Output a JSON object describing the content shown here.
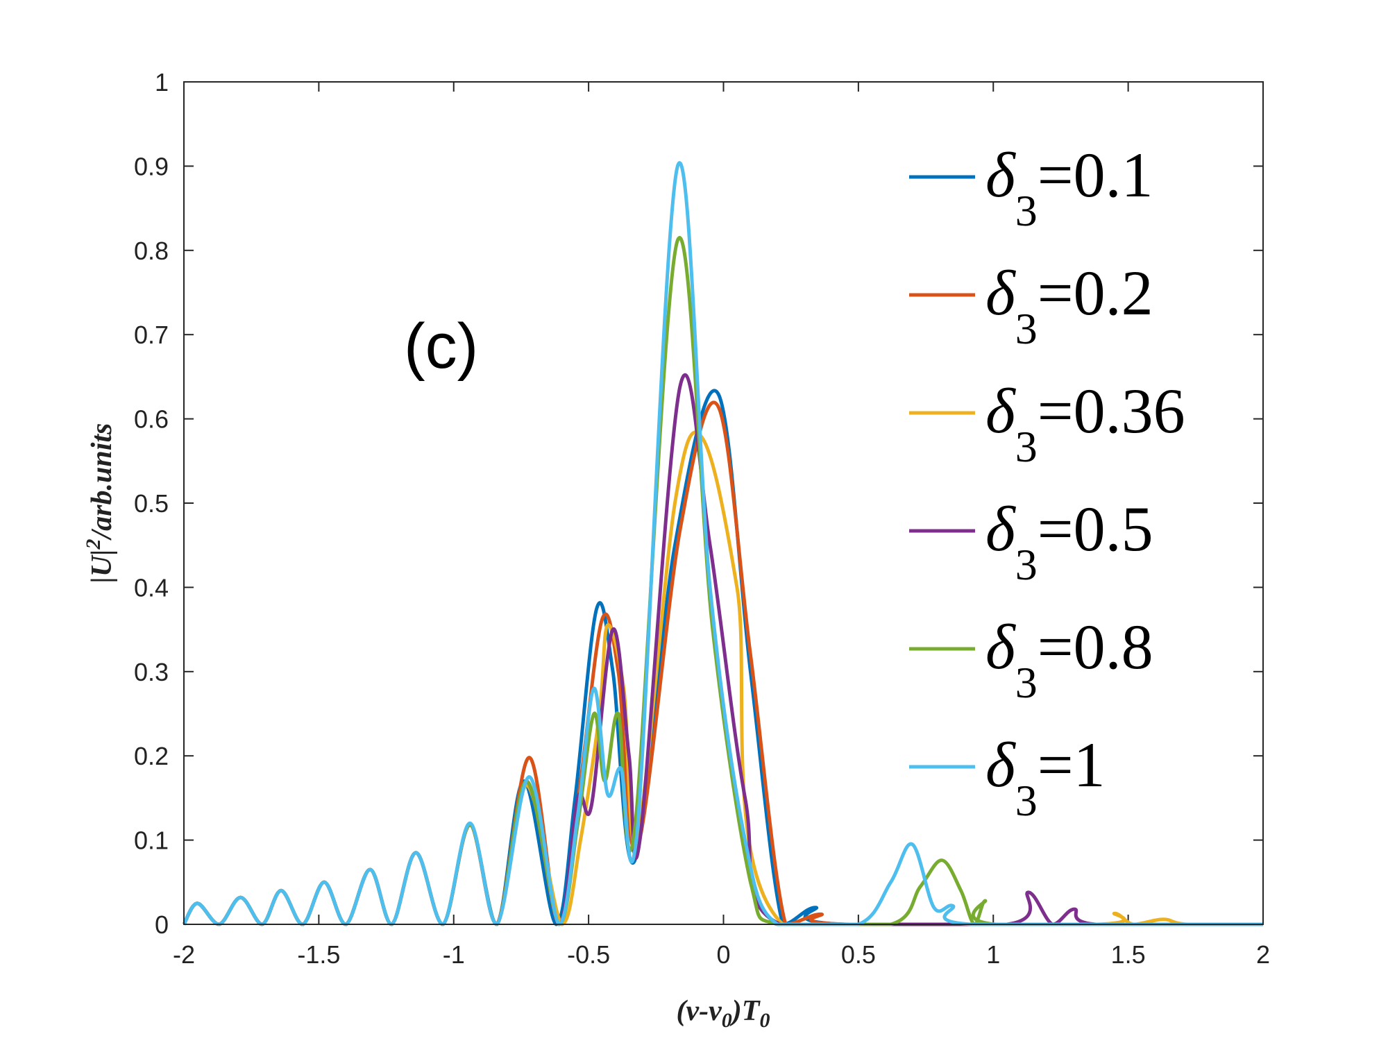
{
  "chart_data": {
    "type": "line",
    "panel_label": "(c)",
    "xlabel": "(v-v0)T0",
    "xlabel_parts": {
      "a": "(v-v",
      "b": "0",
      "c": ")T",
      "d": "0"
    },
    "ylabel": "|U|2/arb.units",
    "ylabel_parts": {
      "a": "|U|",
      "b": "2",
      "c": "/arb.units"
    },
    "xlim": [
      -2,
      2
    ],
    "ylim": [
      0,
      1
    ],
    "x_ticks": [
      "-2",
      "-1.5",
      "-1",
      "-0.5",
      "0",
      "0.5",
      "1",
      "1.5",
      "2"
    ],
    "y_ticks": [
      "0",
      "0.1",
      "0.2",
      "0.3",
      "0.4",
      "0.5",
      "0.6",
      "0.7",
      "0.8",
      "0.9",
      "1"
    ],
    "legend_location": "top-right",
    "series": [
      {
        "name": "δ3=0.1",
        "symbol": "δ",
        "sub": "3",
        "value_text": "=0.1",
        "color": "#0072BD",
        "points": [
          [
            -2,
            0.0
          ],
          [
            -1.95,
            0.025
          ],
          [
            -1.87,
            0.0
          ],
          [
            -1.79,
            0.032
          ],
          [
            -1.71,
            0.0
          ],
          [
            -1.64,
            0.04
          ],
          [
            -1.56,
            0.0
          ],
          [
            -1.48,
            0.05
          ],
          [
            -1.4,
            0.0
          ],
          [
            -1.31,
            0.065
          ],
          [
            -1.23,
            0.0
          ],
          [
            -1.14,
            0.085
          ],
          [
            -1.04,
            0.0
          ],
          [
            -0.94,
            0.118
          ],
          [
            -0.84,
            0.0
          ],
          [
            -0.74,
            0.17
          ],
          [
            -0.62,
            0.0
          ],
          [
            -0.55,
            0.15
          ],
          [
            -0.47,
            0.375
          ],
          [
            -0.41,
            0.3
          ],
          [
            -0.33,
            0.075
          ],
          [
            -0.18,
            0.45
          ],
          [
            -0.02,
            0.63
          ],
          [
            0.1,
            0.3
          ],
          [
            0.22,
            0.0
          ],
          [
            0.34,
            0.02
          ],
          [
            0.45,
            0.0
          ],
          [
            2,
            0.0
          ]
        ]
      },
      {
        "name": "δ3=0.2",
        "symbol": "δ",
        "sub": "3",
        "value_text": "=0.2",
        "color": "#D95319",
        "points": [
          [
            -2,
            0.0
          ],
          [
            -1.95,
            0.025
          ],
          [
            -1.87,
            0.0
          ],
          [
            -1.79,
            0.032
          ],
          [
            -1.71,
            0.0
          ],
          [
            -1.64,
            0.04
          ],
          [
            -1.56,
            0.0
          ],
          [
            -1.48,
            0.05
          ],
          [
            -1.4,
            0.0
          ],
          [
            -1.31,
            0.065
          ],
          [
            -1.23,
            0.0
          ],
          [
            -1.14,
            0.085
          ],
          [
            -1.04,
            0.0
          ],
          [
            -0.94,
            0.118
          ],
          [
            -0.84,
            0.0
          ],
          [
            -0.72,
            0.198
          ],
          [
            -0.61,
            0.0
          ],
          [
            -0.53,
            0.17
          ],
          [
            -0.45,
            0.362
          ],
          [
            -0.39,
            0.3
          ],
          [
            -0.32,
            0.09
          ],
          [
            -0.16,
            0.47
          ],
          [
            -0.02,
            0.615
          ],
          [
            0.1,
            0.32
          ],
          [
            0.23,
            0.0
          ],
          [
            0.36,
            0.012
          ],
          [
            0.47,
            0.0
          ],
          [
            2,
            0.0
          ]
        ]
      },
      {
        "name": "δ3=0.36",
        "symbol": "δ",
        "sub": "3",
        "value_text": "=0.36",
        "color": "#EDB120",
        "points": [
          [
            -2,
            0.0
          ],
          [
            -1.95,
            0.025
          ],
          [
            -1.87,
            0.0
          ],
          [
            -1.79,
            0.032
          ],
          [
            -1.71,
            0.0
          ],
          [
            -1.64,
            0.04
          ],
          [
            -1.56,
            0.0
          ],
          [
            -1.48,
            0.05
          ],
          [
            -1.4,
            0.0
          ],
          [
            -1.31,
            0.065
          ],
          [
            -1.23,
            0.0
          ],
          [
            -1.14,
            0.085
          ],
          [
            -1.04,
            0.0
          ],
          [
            -0.94,
            0.118
          ],
          [
            -0.84,
            0.0
          ],
          [
            -0.73,
            0.165
          ],
          [
            -0.6,
            0.0
          ],
          [
            -0.53,
            0.1
          ],
          [
            -0.46,
            0.25
          ],
          [
            -0.43,
            0.355
          ],
          [
            -0.37,
            0.28
          ],
          [
            -0.32,
            0.1
          ],
          [
            -0.18,
            0.5
          ],
          [
            -0.08,
            0.578
          ],
          [
            0.05,
            0.4
          ],
          [
            0.22,
            0.0
          ],
          [
            1.38,
            0.0
          ],
          [
            1.45,
            0.013
          ],
          [
            1.52,
            0.0
          ],
          [
            1.63,
            0.006
          ],
          [
            1.72,
            0.0
          ],
          [
            2,
            0.0
          ]
        ]
      },
      {
        "name": "δ3=0.5",
        "symbol": "δ",
        "sub": "3",
        "value_text": "=0.5",
        "color": "#7E2F8E",
        "points": [
          [
            -2,
            0.0
          ],
          [
            -1.95,
            0.025
          ],
          [
            -1.87,
            0.0
          ],
          [
            -1.79,
            0.032
          ],
          [
            -1.71,
            0.0
          ],
          [
            -1.64,
            0.04
          ],
          [
            -1.56,
            0.0
          ],
          [
            -1.48,
            0.05
          ],
          [
            -1.4,
            0.0
          ],
          [
            -1.31,
            0.065
          ],
          [
            -1.23,
            0.0
          ],
          [
            -1.14,
            0.085
          ],
          [
            -1.04,
            0.0
          ],
          [
            -0.94,
            0.118
          ],
          [
            -0.84,
            0.0
          ],
          [
            -0.73,
            0.17
          ],
          [
            -0.61,
            0.0
          ],
          [
            -0.54,
            0.15
          ],
          [
            -0.49,
            0.14
          ],
          [
            -0.41,
            0.35
          ],
          [
            -0.35,
            0.2
          ],
          [
            -0.31,
            0.1
          ],
          [
            -0.16,
            0.64
          ],
          [
            -0.05,
            0.45
          ],
          [
            0.08,
            0.15
          ],
          [
            0.21,
            0.0
          ],
          [
            1.05,
            0.0
          ],
          [
            1.13,
            0.038
          ],
          [
            1.22,
            0.0
          ],
          [
            1.3,
            0.018
          ],
          [
            1.38,
            0.0
          ],
          [
            2,
            0.0
          ]
        ]
      },
      {
        "name": "δ3=0.8",
        "symbol": "δ",
        "sub": "3",
        "value_text": "=0.8",
        "color": "#77AC30",
        "points": [
          [
            -2,
            0.0
          ],
          [
            -1.95,
            0.025
          ],
          [
            -1.87,
            0.0
          ],
          [
            -1.79,
            0.032
          ],
          [
            -1.71,
            0.0
          ],
          [
            -1.64,
            0.04
          ],
          [
            -1.56,
            0.0
          ],
          [
            -1.48,
            0.05
          ],
          [
            -1.4,
            0.0
          ],
          [
            -1.31,
            0.065
          ],
          [
            -1.23,
            0.0
          ],
          [
            -1.14,
            0.085
          ],
          [
            -1.04,
            0.0
          ],
          [
            -0.94,
            0.118
          ],
          [
            -0.84,
            0.0
          ],
          [
            -0.73,
            0.17
          ],
          [
            -0.61,
            0.0
          ],
          [
            -0.54,
            0.12
          ],
          [
            -0.48,
            0.25
          ],
          [
            -0.44,
            0.17
          ],
          [
            -0.39,
            0.25
          ],
          [
            -0.33,
            0.11
          ],
          [
            -0.17,
            0.812
          ],
          [
            -0.04,
            0.35
          ],
          [
            0.1,
            0.05
          ],
          [
            0.2,
            0.0
          ],
          [
            0.62,
            0.0
          ],
          [
            0.73,
            0.045
          ],
          [
            0.81,
            0.076
          ],
          [
            0.88,
            0.04
          ],
          [
            0.93,
            0.0
          ],
          [
            0.97,
            0.028
          ],
          [
            1.01,
            0.0
          ],
          [
            2,
            0.0
          ]
        ]
      },
      {
        "name": "δ3=1",
        "symbol": "δ",
        "sub": "3",
        "value_text": "=1",
        "color": "#4DBEEE",
        "points": [
          [
            -2,
            0.0
          ],
          [
            -1.95,
            0.025
          ],
          [
            -1.87,
            0.0
          ],
          [
            -1.79,
            0.032
          ],
          [
            -1.71,
            0.0
          ],
          [
            -1.64,
            0.04
          ],
          [
            -1.56,
            0.0
          ],
          [
            -1.48,
            0.05
          ],
          [
            -1.4,
            0.0
          ],
          [
            -1.31,
            0.065
          ],
          [
            -1.23,
            0.0
          ],
          [
            -1.14,
            0.085
          ],
          [
            -1.04,
            0.0
          ],
          [
            -0.94,
            0.12
          ],
          [
            -0.84,
            0.0
          ],
          [
            -0.72,
            0.175
          ],
          [
            -0.61,
            0.0
          ],
          [
            -0.54,
            0.13
          ],
          [
            -0.48,
            0.28
          ],
          [
            -0.43,
            0.155
          ],
          [
            -0.38,
            0.185
          ],
          [
            -0.32,
            0.11
          ],
          [
            -0.17,
            0.9
          ],
          [
            -0.05,
            0.4
          ],
          [
            0.08,
            0.1
          ],
          [
            0.2,
            0.0
          ],
          [
            0.5,
            0.0
          ],
          [
            0.62,
            0.05
          ],
          [
            0.7,
            0.095
          ],
          [
            0.78,
            0.02
          ],
          [
            0.85,
            0.022
          ],
          [
            0.92,
            0.0
          ],
          [
            2,
            0.0
          ]
        ]
      }
    ]
  }
}
